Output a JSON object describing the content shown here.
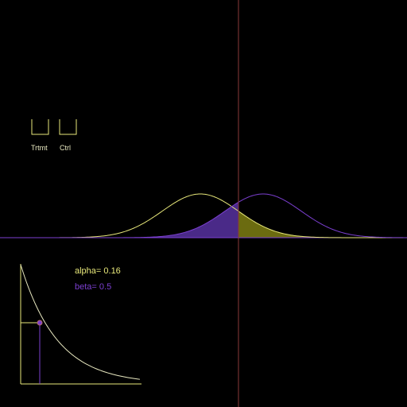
{
  "legend": {
    "treatment_label": "Trtmt",
    "control_label": "Ctrl"
  },
  "stats": {
    "alpha_text": "alpha= 0.16",
    "beta_text": "beta= 0.5",
    "alpha": 0.16,
    "beta": 0.5
  },
  "colors": {
    "background": "#000000",
    "treatment": "#e8e87a",
    "control": "#7b3fd0",
    "alpha_fill": "#6b6b10",
    "beta_fill": "#4a2a88",
    "threshold_line": "#8a3a3a",
    "axis": "#7b3fd0"
  }
}
